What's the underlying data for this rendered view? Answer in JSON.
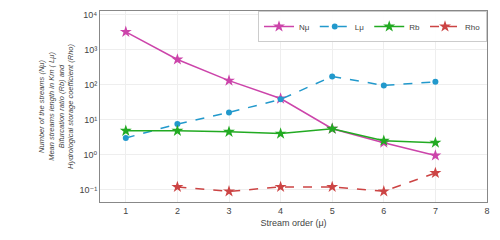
{
  "chart_data": {
    "type": "line",
    "xlabel": "Stream order (μ)",
    "ylabel": "Number of the streams (Nμ)\nMean streams length in Km ( Lμ)\nBifurcation ratio (Rb) and\nHydrological storage coefficient (Rho)",
    "x": [
      1,
      2,
      3,
      4,
      5,
      6,
      7
    ],
    "series": [
      {
        "name": "Nμ",
        "color": "#cc44aa",
        "marker": "star",
        "line_style": "solid",
        "values": [
          3200,
          520,
          130,
          40,
          5.5,
          2.2,
          0.95
        ]
      },
      {
        "name": "Lμ",
        "color": "#2299cc",
        "marker": "circle",
        "line_style": "dashed",
        "values": [
          3.0,
          7.5,
          16.0,
          38,
          170,
          95,
          120
        ]
      },
      {
        "name": "Rb",
        "color": "#22aa22",
        "marker": "star",
        "line_style": "solid",
        "values": [
          4.8,
          4.8,
          4.5,
          4.0,
          5.5,
          2.5,
          2.2
        ]
      },
      {
        "name": "Rho",
        "color": "#cc4444",
        "marker": "star",
        "line_style": "dashed",
        "x": [
          2,
          3,
          4,
          5,
          6,
          7
        ],
        "values": [
          0.12,
          0.09,
          0.12,
          0.12,
          0.09,
          0.3
        ]
      }
    ],
    "log": "y",
    "xlim": [
      0.5,
      8.0
    ],
    "xticks": [
      1,
      2,
      3,
      4,
      5,
      6,
      7,
      8
    ],
    "ylim": [
      0.0446683592150963,
      12589.254117941673
    ],
    "yticks": [
      {
        "value": 0.1,
        "label": "10⁻¹"
      },
      {
        "value": 1,
        "label": "10⁰"
      },
      {
        "value": 10,
        "label": "10¹"
      },
      {
        "value": 100,
        "label": "10²"
      },
      {
        "value": 1000,
        "label": "10³"
      },
      {
        "value": 10000,
        "label": "10⁴"
      }
    ],
    "grid": true,
    "legend": "upper right"
  }
}
